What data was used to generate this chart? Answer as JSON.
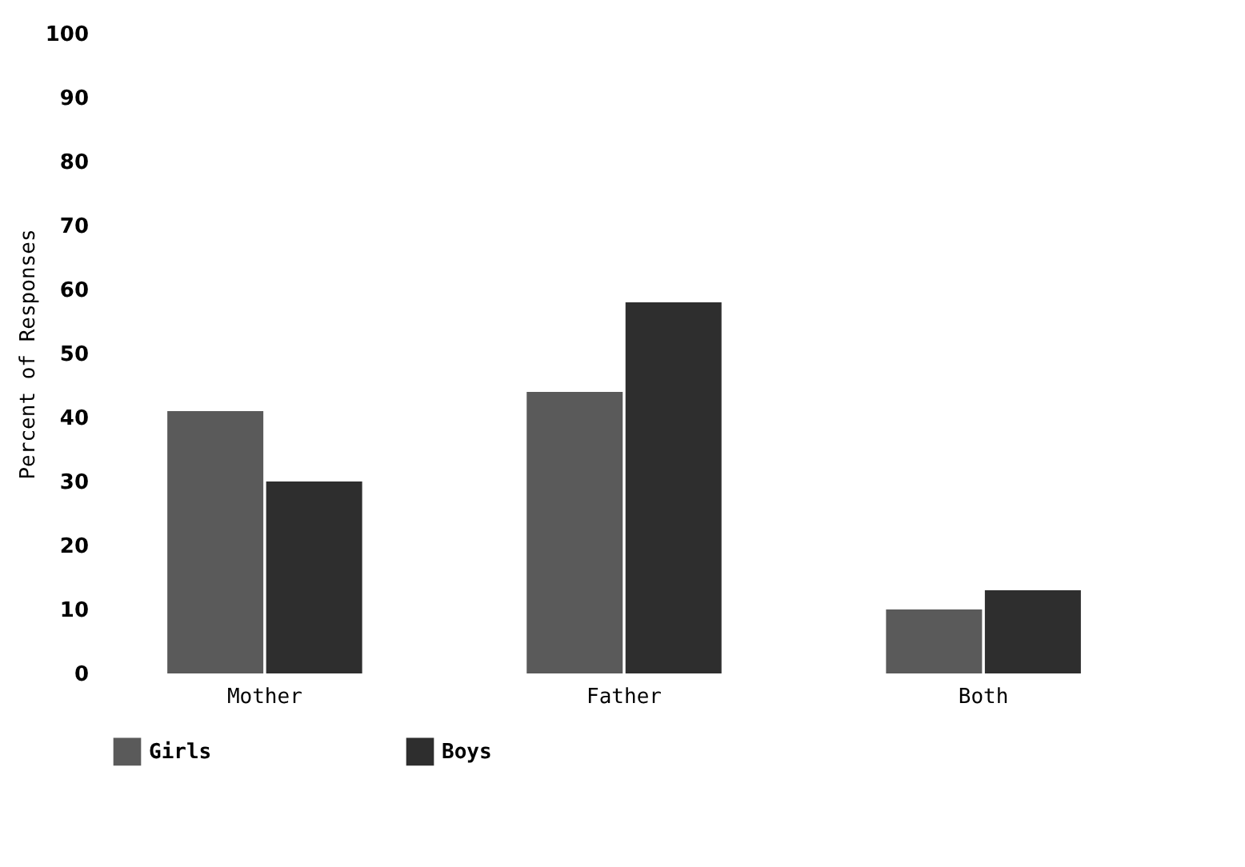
{
  "chart_data": {
    "type": "bar",
    "ylabel": "Percent of Responses",
    "categories": [
      "Mother",
      "Father",
      "Both"
    ],
    "series": [
      {
        "name": "Girls",
        "color": "#5a5a5a",
        "values": [
          41,
          44,
          10
        ]
      },
      {
        "name": "Boys",
        "color": "#2e2e2e",
        "values": [
          30,
          58,
          13
        ]
      }
    ],
    "ylim": [
      0,
      100
    ],
    "yticks": [
      0,
      10,
      20,
      30,
      40,
      50,
      60,
      70,
      80,
      90,
      100
    ],
    "grid": false,
    "legend": "bottom"
  }
}
